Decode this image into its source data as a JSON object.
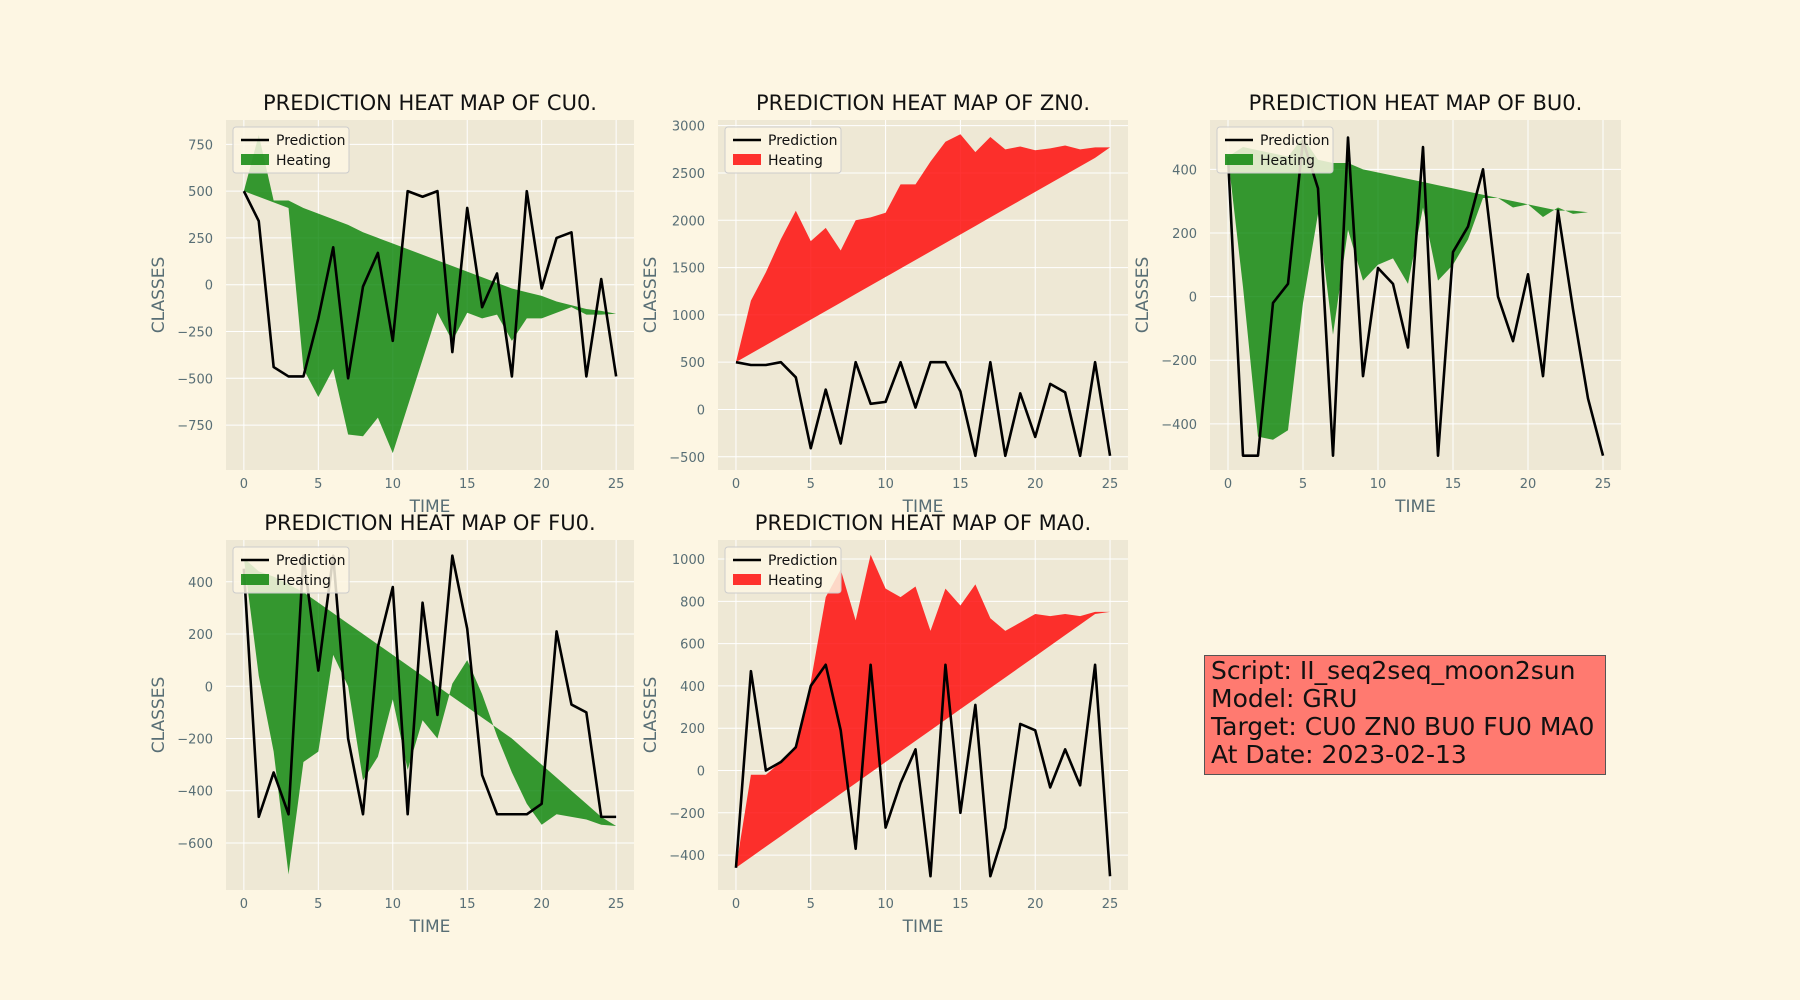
{
  "info_box": {
    "script": "Script: II_seq2seq_moon2sun",
    "model": "Model: GRU",
    "target": "Target: CU0 ZN0 BU0 FU0 MA0",
    "date": "At Date: 2023-02-13",
    "background": "#ff7a70"
  },
  "colors": {
    "figure_bg": "#fdf6e3",
    "axes_bg": "#eee8d5",
    "prediction": "#000000",
    "heat_green": "#008000",
    "heat_red": "#ff0000",
    "tick_text": "#586e75"
  },
  "chart_data": [
    {
      "id": "cu0",
      "type": "line",
      "title": "PREDICTION HEAT MAP OF CU0.",
      "xlabel": "TIME",
      "ylabel": "CLASSES",
      "xlim": [
        -1.2,
        26.2
      ],
      "ylim": [
        -990,
        880
      ],
      "xticks": [
        0,
        5,
        10,
        15,
        20,
        25
      ],
      "yticks": [
        -750,
        -500,
        -250,
        0,
        250,
        500,
        750
      ],
      "legend": [
        "Prediction",
        "Heating"
      ],
      "legend_position": "upper-left",
      "heat_color": "green",
      "x": [
        0,
        1,
        2,
        3,
        4,
        5,
        6,
        7,
        8,
        9,
        10,
        11,
        12,
        13,
        14,
        15,
        16,
        17,
        18,
        19,
        20,
        21,
        22,
        23,
        24,
        25
      ],
      "prediction": [
        500,
        340,
        -440,
        -490,
        -490,
        -180,
        200,
        -500,
        -10,
        170,
        -300,
        500,
        470,
        500,
        -360,
        410,
        -120,
        60,
        -490,
        500,
        -20,
        250,
        280,
        -490,
        30,
        -490
      ],
      "heat_upper": [
        500,
        800,
        450,
        450,
        410,
        380,
        350,
        320,
        280,
        250,
        220,
        190,
        160,
        130,
        100,
        70,
        40,
        10,
        -20,
        -40,
        -60,
        -90,
        -110,
        -130,
        -140,
        -155
      ],
      "heat_lower": [
        500,
        470,
        440,
        410,
        -450,
        -600,
        -450,
        -800,
        -810,
        -710,
        -900,
        -650,
        -400,
        -150,
        -300,
        -150,
        -180,
        -160,
        -300,
        -180,
        -180,
        -150,
        -120,
        -160,
        -160,
        -155
      ]
    },
    {
      "id": "zn0",
      "type": "line",
      "title": "PREDICTION HEAT MAP OF ZN0.",
      "xlabel": "TIME",
      "ylabel": "CLASSES",
      "xlim": [
        -1.2,
        26.2
      ],
      "ylim": [
        -640,
        3060
      ],
      "xticks": [
        0,
        5,
        10,
        15,
        20,
        25
      ],
      "yticks": [
        -500,
        0,
        500,
        1000,
        1500,
        2000,
        2500,
        3000
      ],
      "legend": [
        "Prediction",
        "Heating"
      ],
      "legend_position": "upper-left",
      "heat_color": "red",
      "x": [
        0,
        1,
        2,
        3,
        4,
        5,
        6,
        7,
        8,
        9,
        10,
        11,
        12,
        13,
        14,
        15,
        16,
        17,
        18,
        19,
        20,
        21,
        22,
        23,
        24,
        25
      ],
      "prediction": [
        500,
        470,
        470,
        500,
        340,
        -410,
        210,
        -360,
        500,
        60,
        80,
        500,
        20,
        500,
        500,
        190,
        -490,
        500,
        -490,
        170,
        -290,
        270,
        180,
        -490,
        500,
        -490
      ],
      "heat_upper": [
        500,
        1150,
        1450,
        1800,
        2100,
        1780,
        1920,
        1680,
        2000,
        2030,
        2080,
        2380,
        2380,
        2620,
        2830,
        2910,
        2720,
        2880,
        2750,
        2780,
        2740,
        2760,
        2790,
        2750,
        2770,
        2770
      ],
      "heat_lower": [
        500,
        590,
        680,
        770,
        860,
        950,
        1040,
        1130,
        1220,
        1310,
        1400,
        1490,
        1580,
        1670,
        1760,
        1850,
        1940,
        2030,
        2120,
        2210,
        2300,
        2390,
        2480,
        2570,
        2660,
        2770
      ]
    },
    {
      "id": "bu0",
      "type": "line",
      "title": "PREDICTION HEAT MAP OF BU0.",
      "xlabel": "TIME",
      "ylabel": "CLASSES",
      "xlim": [
        -1.2,
        26.2
      ],
      "ylim": [
        -545,
        555
      ],
      "xticks": [
        0,
        5,
        10,
        15,
        20,
        25
      ],
      "yticks": [
        -400,
        -200,
        0,
        200,
        400
      ],
      "legend": [
        "Prediction",
        "Heating"
      ],
      "legend_position": "upper-left",
      "heat_color": "green",
      "x": [
        0,
        1,
        2,
        3,
        4,
        5,
        6,
        7,
        8,
        9,
        10,
        11,
        12,
        13,
        14,
        15,
        16,
        17,
        18,
        19,
        20,
        21,
        22,
        23,
        24,
        25
      ],
      "prediction": [
        440,
        -500,
        -500,
        -20,
        40,
        490,
        340,
        -500,
        500,
        -250,
        90,
        40,
        -160,
        470,
        -500,
        140,
        220,
        400,
        0,
        -140,
        70,
        -250,
        270,
        -40,
        -320,
        -500
      ],
      "heat_upper": [
        440,
        470,
        460,
        450,
        440,
        500,
        430,
        420,
        420,
        400,
        390,
        380,
        370,
        360,
        350,
        340,
        330,
        320,
        310,
        300,
        290,
        280,
        270,
        270,
        265,
        265
      ],
      "heat_lower": [
        440,
        30,
        -440,
        -450,
        -420,
        -20,
        260,
        -120,
        210,
        50,
        100,
        120,
        40,
        280,
        50,
        100,
        180,
        310,
        310,
        280,
        290,
        250,
        280,
        260,
        265,
        265
      ]
    },
    {
      "id": "fu0",
      "type": "line",
      "title": "PREDICTION HEAT MAP OF FU0.",
      "xlabel": "TIME",
      "ylabel": "CLASSES",
      "xlim": [
        -1.2,
        26.2
      ],
      "ylim": [
        -780,
        560
      ],
      "xticks": [
        0,
        5,
        10,
        15,
        20,
        25
      ],
      "yticks": [
        -600,
        -400,
        -200,
        0,
        200,
        400
      ],
      "legend": [
        "Prediction",
        "Heating"
      ],
      "legend_position": "upper-left",
      "heat_color": "green",
      "x": [
        0,
        1,
        2,
        3,
        4,
        5,
        6,
        7,
        8,
        9,
        10,
        11,
        12,
        13,
        14,
        15,
        16,
        17,
        18,
        19,
        20,
        21,
        22,
        23,
        24,
        25
      ],
      "prediction": [
        450,
        -500,
        -330,
        -490,
        500,
        60,
        500,
        -200,
        -490,
        150,
        380,
        -490,
        320,
        -110,
        500,
        220,
        -340,
        -490,
        -490,
        -490,
        -450,
        210,
        -70,
        -100,
        -500,
        -500
      ],
      "heat_upper": [
        490,
        440,
        420,
        390,
        360,
        320,
        280,
        240,
        200,
        160,
        120,
        80,
        40,
        0,
        -40,
        -80,
        -120,
        -160,
        -200,
        -250,
        -300,
        -350,
        -400,
        -450,
        -500,
        -535
      ],
      "heat_lower": [
        490,
        40,
        -250,
        -720,
        -290,
        -250,
        120,
        0,
        -360,
        -270,
        -50,
        -320,
        -130,
        -200,
        10,
        100,
        -30,
        -190,
        -330,
        -450,
        -530,
        -490,
        -500,
        -510,
        -530,
        -535
      ]
    },
    {
      "id": "ma0",
      "type": "line",
      "title": "PREDICTION HEAT MAP OF MA0.",
      "xlabel": "TIME",
      "ylabel": "CLASSES",
      "xlim": [
        -1.2,
        26.2
      ],
      "ylim": [
        -565,
        1090
      ],
      "xticks": [
        0,
        5,
        10,
        15,
        20,
        25
      ],
      "yticks": [
        -400,
        -200,
        0,
        200,
        400,
        600,
        800,
        1000
      ],
      "legend": [
        "Prediction",
        "Heating"
      ],
      "legend_position": "upper-left",
      "heat_color": "red",
      "x": [
        0,
        1,
        2,
        3,
        4,
        5,
        6,
        7,
        8,
        9,
        10,
        11,
        12,
        13,
        14,
        15,
        16,
        17,
        18,
        19,
        20,
        21,
        22,
        23,
        24,
        25
      ],
      "prediction": [
        -460,
        470,
        0,
        40,
        110,
        400,
        500,
        190,
        -370,
        500,
        -270,
        -60,
        100,
        -500,
        500,
        -200,
        310,
        -500,
        -270,
        220,
        190,
        -80,
        100,
        -70,
        500,
        -500
      ],
      "heat_upper": [
        -460,
        -20,
        -20,
        40,
        120,
        420,
        820,
        950,
        710,
        1020,
        860,
        820,
        870,
        660,
        860,
        780,
        880,
        720,
        660,
        700,
        740,
        730,
        740,
        730,
        750,
        750
      ],
      "heat_lower": [
        -460,
        -410,
        -360,
        -310,
        -260,
        -210,
        -160,
        -110,
        -60,
        -10,
        40,
        90,
        140,
        190,
        240,
        290,
        340,
        390,
        440,
        490,
        540,
        590,
        640,
        690,
        740,
        750
      ]
    }
  ]
}
